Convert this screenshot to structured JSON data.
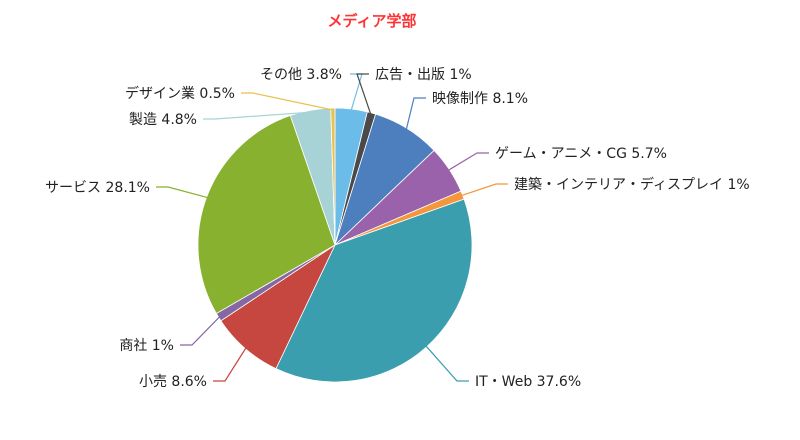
{
  "chart_data": {
    "type": "pie",
    "title": "メディア学部",
    "start": "top, clockwise",
    "slices": [
      {
        "label": "その他",
        "value": 3.8,
        "text": "その他 3.8%",
        "color": "#6cbce9"
      },
      {
        "label": "広告・出版",
        "value": 1.0,
        "text": "広告・出版 1%",
        "color": "#4a4a4a"
      },
      {
        "label": "映像制作",
        "value": 8.1,
        "text": "映像制作 8.1%",
        "color": "#4d7fbe"
      },
      {
        "label": "ゲーム・アニメ・CG",
        "value": 5.7,
        "text": "ゲーム・アニメ・CG 5.7%",
        "color": "#9a62ab"
      },
      {
        "label": "建築・インテリア・ディスプレイ",
        "value": 1.0,
        "text": "建築・インテリア・ディスプレイ 1%",
        "color": "#f4963c"
      },
      {
        "label": "IT・Web",
        "value": 37.6,
        "text": "IT・Web 37.6%",
        "color": "#3a9eaf"
      },
      {
        "label": "小売",
        "value": 8.6,
        "text": "小売 8.6%",
        "color": "#c6473f"
      },
      {
        "label": "商社",
        "value": 1.0,
        "text": "商社 1%",
        "color": "#8567a4"
      },
      {
        "label": "サービス",
        "value": 28.1,
        "text": "サービス 28.1%",
        "color": "#87b12f"
      },
      {
        "label": "製造",
        "value": 4.8,
        "text": "製造 4.8%",
        "color": "#a7d3d6"
      },
      {
        "label": "デザイン業",
        "value": 0.5,
        "text": "デザイン業 0.5%",
        "color": "#e9c14c"
      }
    ]
  }
}
